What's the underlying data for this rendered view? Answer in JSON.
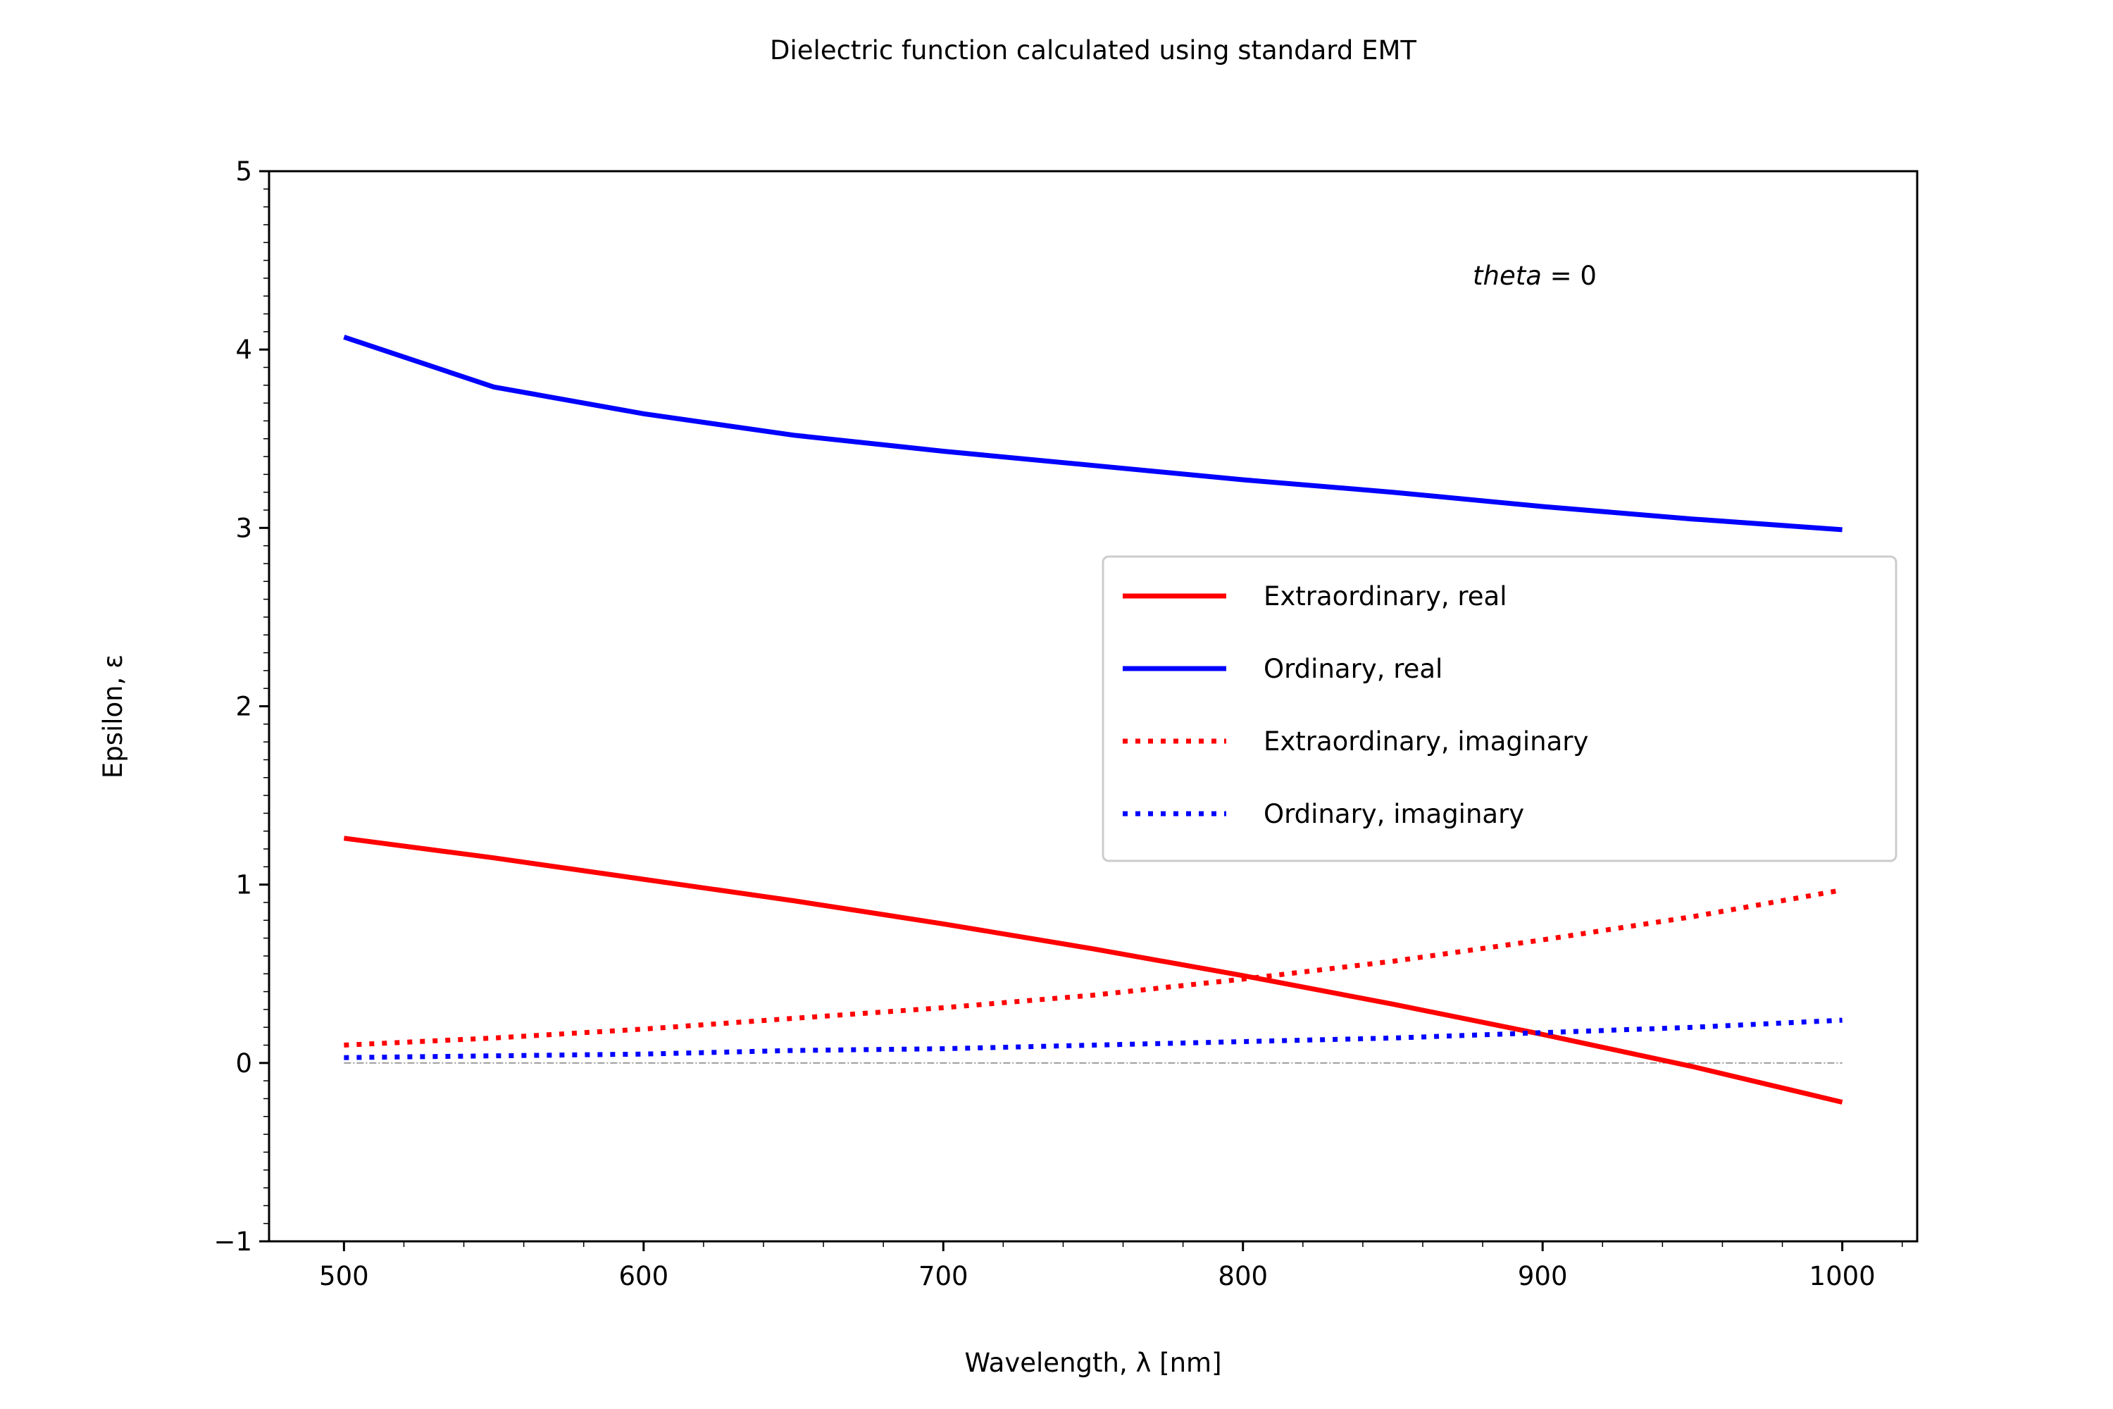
{
  "chart_data": {
    "type": "line",
    "title": "Dielectric function calculated using standard EMT",
    "xlabel": "Wavelength, λ [nm]",
    "ylabel": "Epsilon, ε",
    "annotation": "theta = 0",
    "xlim": [
      475,
      1025
    ],
    "ylim": [
      -1,
      5
    ],
    "xticks": [
      500,
      600,
      700,
      800,
      900,
      1000
    ],
    "yticks": [
      -1,
      0,
      1,
      2,
      3,
      4,
      5
    ],
    "ytick_labels": [
      "−1",
      "0",
      "1",
      "2",
      "3",
      "4",
      "5"
    ],
    "grid": false,
    "legend_position": "center-right",
    "zero_reference_line": true,
    "x": [
      500,
      550,
      600,
      650,
      700,
      750,
      800,
      850,
      900,
      950,
      1000
    ],
    "series": [
      {
        "name": "Extraordinary, real",
        "color": "#ff0000",
        "style": "solid",
        "values": [
          1.26,
          1.15,
          1.03,
          0.91,
          0.78,
          0.64,
          0.49,
          0.33,
          0.16,
          -0.02,
          -0.22
        ]
      },
      {
        "name": "Ordinary, real",
        "color": "#0000ff",
        "style": "solid",
        "values": [
          4.07,
          3.79,
          3.64,
          3.52,
          3.43,
          3.35,
          3.27,
          3.2,
          3.12,
          3.05,
          2.99
        ]
      },
      {
        "name": "Extraordinary, imaginary",
        "color": "#ff0000",
        "style": "dotted",
        "values": [
          0.1,
          0.14,
          0.19,
          0.25,
          0.31,
          0.38,
          0.47,
          0.57,
          0.69,
          0.82,
          0.97
        ]
      },
      {
        "name": "Ordinary, imaginary",
        "color": "#0000ff",
        "style": "dotted",
        "values": [
          0.03,
          0.04,
          0.05,
          0.07,
          0.08,
          0.1,
          0.12,
          0.14,
          0.17,
          0.2,
          0.24
        ]
      }
    ]
  }
}
